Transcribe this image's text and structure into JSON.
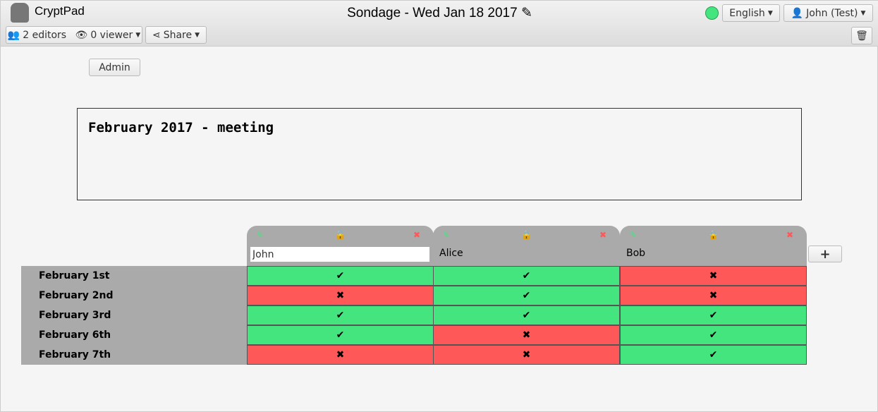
{
  "app": {
    "name": "CryptPad",
    "title": "Sondage - Wed Jan 18 2017",
    "status_color": "#44e57f"
  },
  "toolbar": {
    "editors": "2 editors",
    "viewers": "0 viewer",
    "share": "Share",
    "language": "English",
    "user": "John (Test)"
  },
  "admin_label": "Admin",
  "description": "February 2017 - meeting",
  "colors": {
    "yes": "#44e57f",
    "no": "#fe5858",
    "header": "#aaaaaa"
  },
  "columns": [
    {
      "name": "John",
      "locked": false,
      "editing": true,
      "votes": [
        "✔",
        "✖",
        "✔",
        "✔",
        "✖"
      ]
    },
    {
      "name": "Alice",
      "locked": true,
      "votes": [
        "✔",
        "✔",
        "✔",
        "✖",
        "✖"
      ]
    },
    {
      "name": "Bob",
      "locked": true,
      "votes": [
        "✖",
        "✖",
        "✔",
        "✔",
        "✔"
      ]
    }
  ],
  "rows": [
    "February 1st",
    "February 2nd",
    "February 3rd",
    "February 6th",
    "February 7th"
  ],
  "add_column_label": "+"
}
